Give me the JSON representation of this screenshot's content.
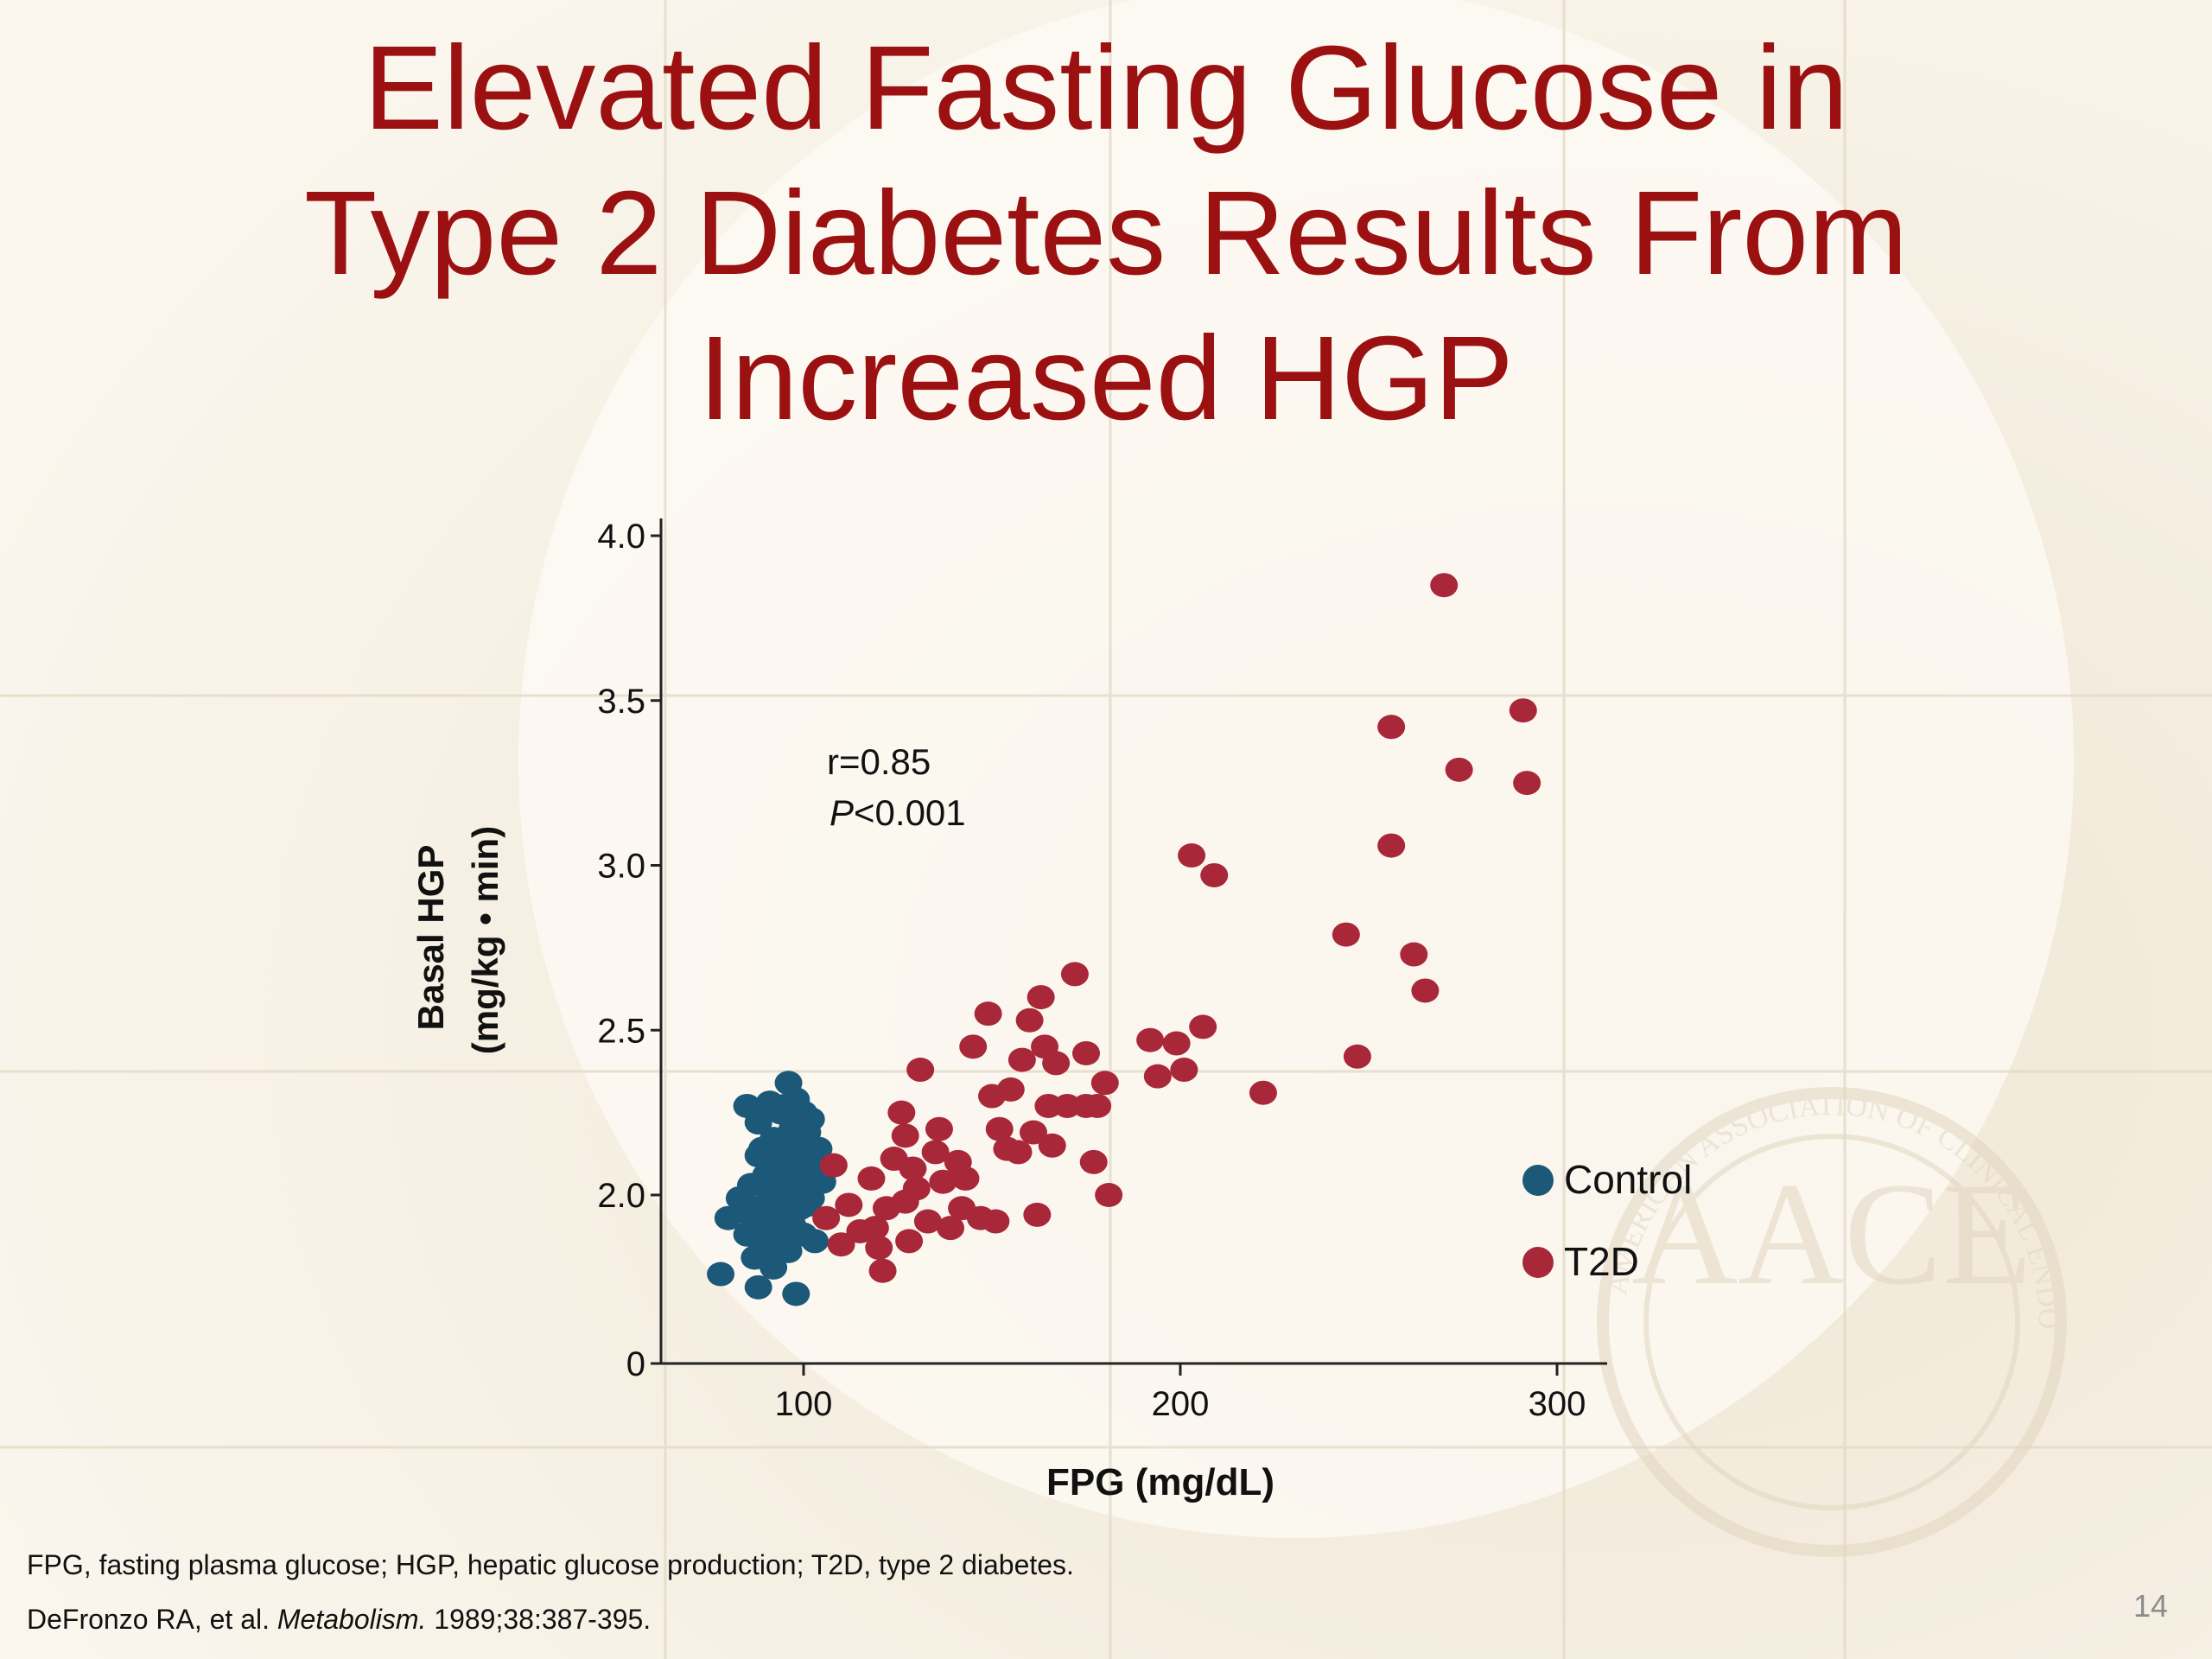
{
  "slide": {
    "title_lines": [
      "Elevated Fasting Glucose in",
      "Type 2 Diabetes Results From",
      "Increased HGP"
    ],
    "footnote_1": "FPG, fasting plasma glucose; HGP, hepatic glucose production; T2D, type 2 diabetes.",
    "citation": {
      "authors": "DeFronzo RA, et al.",
      "journal": "Metabolism.",
      "details": "1989;38:387-395."
    },
    "page_number": "14",
    "logo_text": "AACE",
    "logo_ring_text": "AMERICAN ASSOCIATION OF CLINICAL ENDOCRINOLOGISTS"
  },
  "colors": {
    "title": "#9b1111",
    "control": "#1c5878",
    "t2d": "#a8283a"
  },
  "chart_data": {
    "type": "scatter",
    "xlabel": "FPG (mg/dL)",
    "ylabel_line1": "Basal HGP",
    "ylabel_line2": "(mg/kg • min)",
    "x_ticks": [
      100,
      200,
      300
    ],
    "y_ticks": [
      "0",
      "2.0",
      "2.5",
      "3.0",
      "3.5",
      "4.0"
    ],
    "y_axis_break": "axis jumps from 0 directly to the 2.0 tick (broken scale)",
    "xlim": [
      60,
      315
    ],
    "ylim_upper": [
      1.5,
      4.0
    ],
    "annotation": {
      "r": "r=0.85",
      "p_italic": "P",
      "p_rest": "<0.001"
    },
    "legend": {
      "position": "right-middle",
      "entries": [
        "Control",
        "T2D"
      ]
    },
    "series": [
      {
        "name": "Control",
        "color": "#1c5878",
        "points": [
          [
            80,
            1.93
          ],
          [
            83,
            1.99
          ],
          [
            85,
            1.88
          ],
          [
            86,
            2.03
          ],
          [
            87,
            1.92
          ],
          [
            88,
            2.22
          ],
          [
            88,
            2.12
          ],
          [
            89,
            1.85
          ],
          [
            90,
            1.97
          ],
          [
            90,
            2.06
          ],
          [
            91,
            2.28
          ],
          [
            91,
            1.9
          ],
          [
            92,
            2.02
          ],
          [
            92,
            2.17
          ],
          [
            93,
            2.1
          ],
          [
            93,
            1.95
          ],
          [
            94,
            2.25
          ],
          [
            94,
            1.87
          ],
          [
            95,
            2.05
          ],
          [
            95,
            2.13
          ],
          [
            96,
            2.34
          ],
          [
            96,
            1.98
          ],
          [
            97,
            2.2
          ],
          [
            97,
            1.91
          ],
          [
            98,
            2.08
          ],
          [
            98,
            2.29
          ],
          [
            99,
            2.15
          ],
          [
            99,
            1.96
          ],
          [
            100,
            2.03
          ],
          [
            100,
            2.25
          ],
          [
            101,
            2.19
          ],
          [
            101,
            2.1
          ],
          [
            102,
            1.99
          ],
          [
            103,
            2.07
          ],
          [
            104,
            2.14
          ],
          [
            105,
            2.04
          ],
          [
            87,
            1.81
          ],
          [
            92,
            1.78
          ],
          [
            96,
            1.83
          ],
          [
            100,
            1.88
          ],
          [
            103,
            1.86
          ],
          [
            91,
            1.8
          ],
          [
            89,
            2.14
          ],
          [
            95,
            2.27
          ],
          [
            102,
            2.23
          ],
          [
            78,
            1.76
          ],
          [
            88,
            1.72
          ],
          [
            98,
            1.7
          ],
          [
            92,
            2.0
          ],
          [
            97,
            2.04
          ],
          [
            94,
            2.09
          ],
          [
            99,
            2.03
          ],
          [
            86,
            1.96
          ],
          [
            101,
            1.97
          ],
          [
            90,
            1.87
          ],
          [
            85,
            2.27
          ]
        ]
      },
      {
        "name": "T2D",
        "color": "#a8283a",
        "points": [
          [
            106,
            1.93
          ],
          [
            108,
            2.09
          ],
          [
            110,
            1.85
          ],
          [
            112,
            1.97
          ],
          [
            115,
            1.89
          ],
          [
            118,
            2.05
          ],
          [
            119,
            1.9
          ],
          [
            120,
            1.84
          ],
          [
            121,
            1.77
          ],
          [
            122,
            1.96
          ],
          [
            124,
            2.11
          ],
          [
            126,
            2.25
          ],
          [
            127,
            1.98
          ],
          [
            127,
            2.18
          ],
          [
            128,
            1.86
          ],
          [
            129,
            2.08
          ],
          [
            130,
            2.02
          ],
          [
            131,
            2.38
          ],
          [
            133,
            1.92
          ],
          [
            135,
            2.13
          ],
          [
            136,
            2.2
          ],
          [
            137,
            2.04
          ],
          [
            139,
            1.9
          ],
          [
            141,
            2.1
          ],
          [
            142,
            1.96
          ],
          [
            143,
            2.05
          ],
          [
            145,
            2.45
          ],
          [
            147,
            1.93
          ],
          [
            149,
            2.55
          ],
          [
            150,
            2.3
          ],
          [
            151,
            1.92
          ],
          [
            152,
            2.2
          ],
          [
            154,
            2.14
          ],
          [
            155,
            2.32
          ],
          [
            157,
            2.13
          ],
          [
            158,
            2.41
          ],
          [
            160,
            2.53
          ],
          [
            161,
            2.19
          ],
          [
            162,
            1.94
          ],
          [
            163,
            2.6
          ],
          [
            164,
            2.45
          ],
          [
            165,
            2.27
          ],
          [
            166,
            2.15
          ],
          [
            167,
            2.4
          ],
          [
            170,
            2.27
          ],
          [
            172,
            2.67
          ],
          [
            175,
            2.43
          ],
          [
            175,
            2.27
          ],
          [
            177,
            2.1
          ],
          [
            178,
            2.27
          ],
          [
            180,
            2.34
          ],
          [
            181,
            2.0
          ],
          [
            192,
            2.47
          ],
          [
            194,
            2.36
          ],
          [
            199,
            2.46
          ],
          [
            201,
            2.38
          ],
          [
            203,
            3.03
          ],
          [
            206,
            2.51
          ],
          [
            209,
            2.97
          ],
          [
            222,
            2.31
          ],
          [
            244,
            2.79
          ],
          [
            247,
            2.42
          ],
          [
            256,
            3.42
          ],
          [
            256,
            3.06
          ],
          [
            262,
            2.73
          ],
          [
            265,
            2.62
          ],
          [
            270,
            3.85
          ],
          [
            274,
            3.29
          ],
          [
            291,
            3.47
          ],
          [
            292,
            3.25
          ]
        ]
      }
    ]
  }
}
